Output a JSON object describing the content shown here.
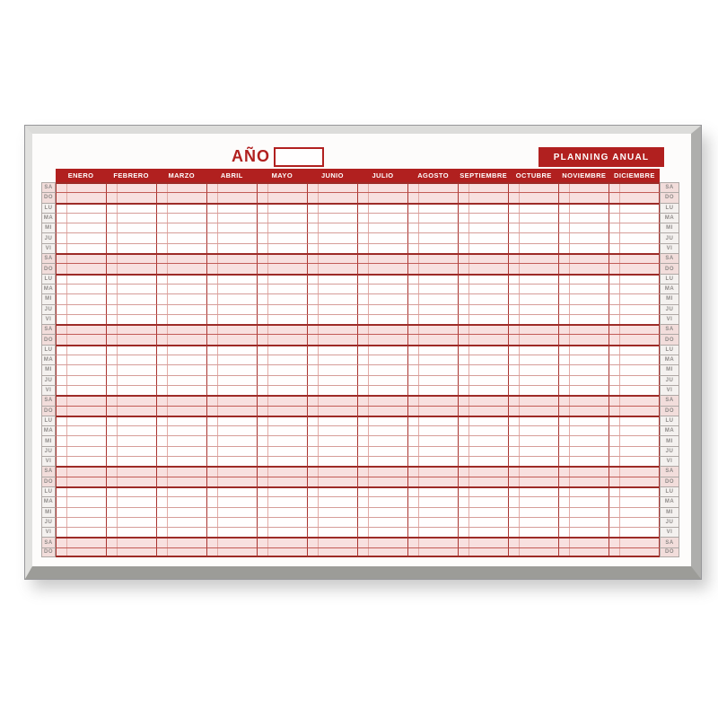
{
  "header": {
    "year_label": "AÑO",
    "year_value": "",
    "badge_label": "PLANNING ANUAL"
  },
  "calendar": {
    "months": [
      "ENERO",
      "FEBRERO",
      "MARZO",
      "ABRIL",
      "MAYO",
      "JUNIO",
      "JULIO",
      "AGOSTO",
      "SEPTIEMBRE",
      "OCTUBRE",
      "NOVIEMBRE",
      "DICIEMBRE"
    ],
    "day_rows": [
      "SA",
      "DO",
      "LU",
      "MA",
      "MI",
      "JU",
      "VI",
      "SA",
      "DO",
      "LU",
      "MA",
      "MI",
      "JU",
      "VI",
      "SA",
      "DO",
      "LU",
      "MA",
      "MI",
      "JU",
      "VI",
      "SA",
      "DO",
      "LU",
      "MA",
      "MI",
      "JU",
      "VI",
      "SA",
      "DO",
      "LU",
      "MA",
      "MI",
      "JU",
      "VI",
      "SA",
      "DO"
    ],
    "weekend_days": [
      "SA",
      "DO"
    ]
  },
  "colors": {
    "primary_red": "#b1201f",
    "weekend_pink": "#f8e0df",
    "thin_grid_line": "#d69d99",
    "week_boundary_line": "#9d2b27",
    "frame_silver": "#c9c9c7"
  }
}
